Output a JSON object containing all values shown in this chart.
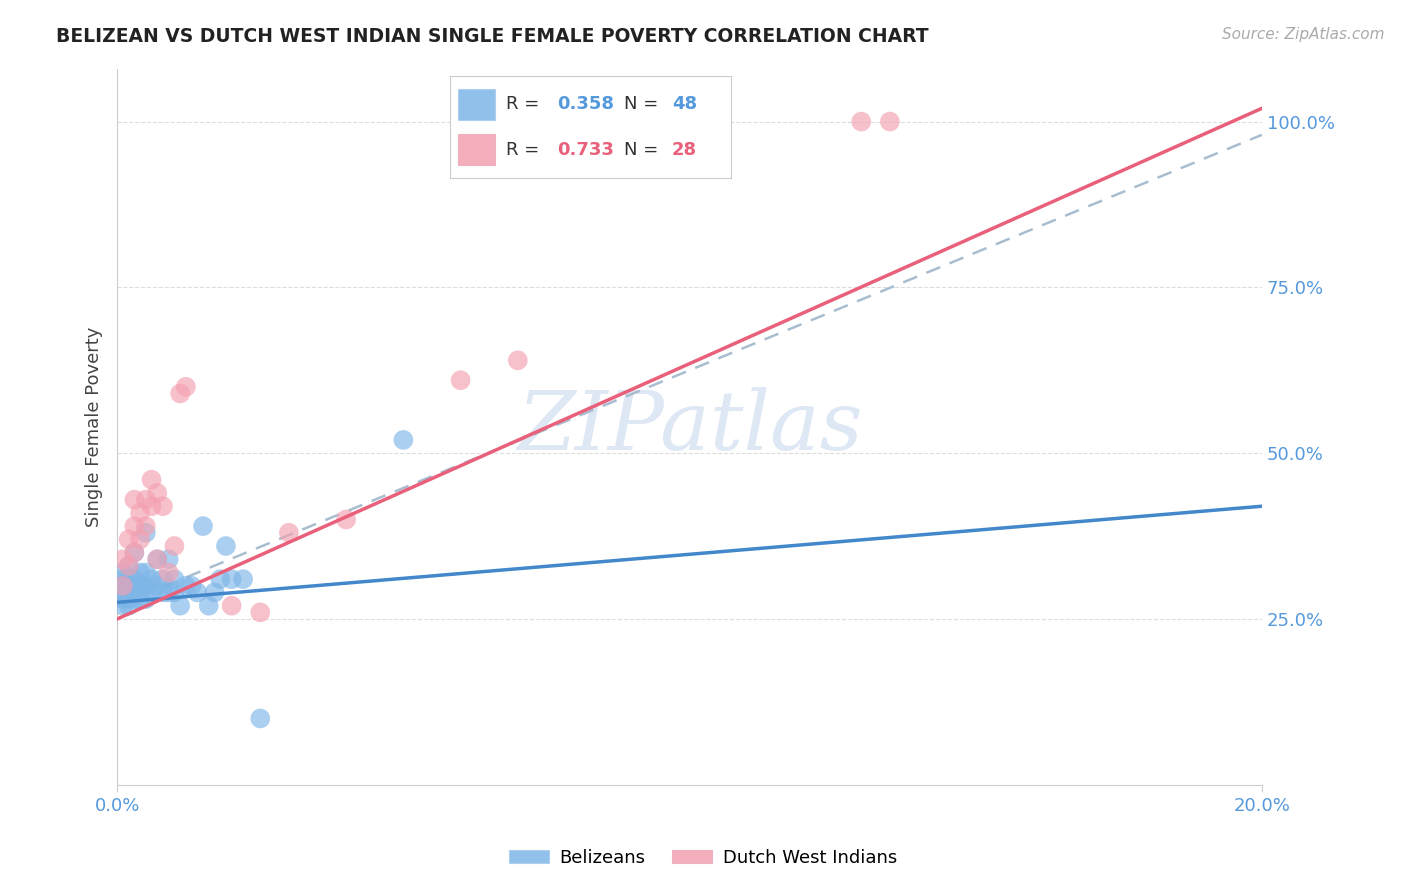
{
  "title": "BELIZEAN VS DUTCH WEST INDIAN SINGLE FEMALE POVERTY CORRELATION CHART",
  "source": "Source: ZipAtlas.com",
  "ylabel": "Single Female Poverty",
  "ytick_labels": [
    "25.0%",
    "50.0%",
    "75.0%",
    "100.0%"
  ],
  "ytick_values": [
    0.25,
    0.5,
    0.75,
    1.0
  ],
  "xlim": [
    0.0,
    0.2
  ],
  "ylim": [
    0.0,
    1.08
  ],
  "legend_belizean": "Belizeans",
  "legend_dutch": "Dutch West Indians",
  "R_belizean": 0.358,
  "N_belizean": 48,
  "R_dutch": 0.733,
  "N_dutch": 28,
  "belizean_color": "#7EB6E8",
  "dutch_color": "#F4A0B0",
  "belizean_line_color": "#4488CC",
  "dutch_line_color": "#E8607A",
  "dashed_line_color": "#A8BED0",
  "title_color": "#222222",
  "axis_label_color": "#5599DD",
  "watermark_color": "#C8D8EE",
  "background_color": "#FFFFFF",
  "grid_color": "#DDDDDD",
  "belizean_x": [
    0.001,
    0.001,
    0.001,
    0.001,
    0.001,
    0.001,
    0.002,
    0.002,
    0.002,
    0.002,
    0.002,
    0.002,
    0.003,
    0.003,
    0.003,
    0.003,
    0.003,
    0.004,
    0.004,
    0.004,
    0.004,
    0.005,
    0.005,
    0.005,
    0.005,
    0.006,
    0.006,
    0.007,
    0.007,
    0.008,
    0.008,
    0.009,
    0.009,
    0.01,
    0.01,
    0.011,
    0.012,
    0.013,
    0.014,
    0.015,
    0.016,
    0.017,
    0.018,
    0.019,
    0.02,
    0.022,
    0.025,
    0.05
  ],
  "belizean_y": [
    0.27,
    0.28,
    0.29,
    0.3,
    0.31,
    0.32,
    0.27,
    0.28,
    0.29,
    0.3,
    0.31,
    0.33,
    0.28,
    0.29,
    0.3,
    0.31,
    0.35,
    0.28,
    0.29,
    0.3,
    0.32,
    0.28,
    0.3,
    0.32,
    0.38,
    0.29,
    0.31,
    0.3,
    0.34,
    0.29,
    0.31,
    0.29,
    0.34,
    0.29,
    0.31,
    0.27,
    0.3,
    0.3,
    0.29,
    0.39,
    0.27,
    0.29,
    0.31,
    0.36,
    0.31,
    0.31,
    0.1,
    0.52
  ],
  "dutch_x": [
    0.001,
    0.001,
    0.002,
    0.002,
    0.003,
    0.003,
    0.003,
    0.004,
    0.004,
    0.005,
    0.005,
    0.006,
    0.006,
    0.007,
    0.007,
    0.008,
    0.009,
    0.01,
    0.011,
    0.012,
    0.02,
    0.025,
    0.03,
    0.04,
    0.06,
    0.07,
    0.13,
    0.135
  ],
  "dutch_y": [
    0.3,
    0.34,
    0.33,
    0.37,
    0.35,
    0.39,
    0.43,
    0.37,
    0.41,
    0.39,
    0.43,
    0.42,
    0.46,
    0.44,
    0.34,
    0.42,
    0.32,
    0.36,
    0.59,
    0.6,
    0.27,
    0.26,
    0.38,
    0.4,
    0.61,
    0.64,
    1.0,
    1.0
  ],
  "bel_line_x0": 0.0,
  "bel_line_y0": 0.275,
  "bel_line_x1": 0.2,
  "bel_line_y1": 0.42,
  "dut_line_x0": 0.0,
  "dut_line_y0": 0.25,
  "dut_line_x1": 0.2,
  "dut_line_y1": 1.02,
  "dash_line_x0": 0.0,
  "dash_line_y0": 0.27,
  "dash_line_x1": 0.2,
  "dash_line_y1": 0.98
}
